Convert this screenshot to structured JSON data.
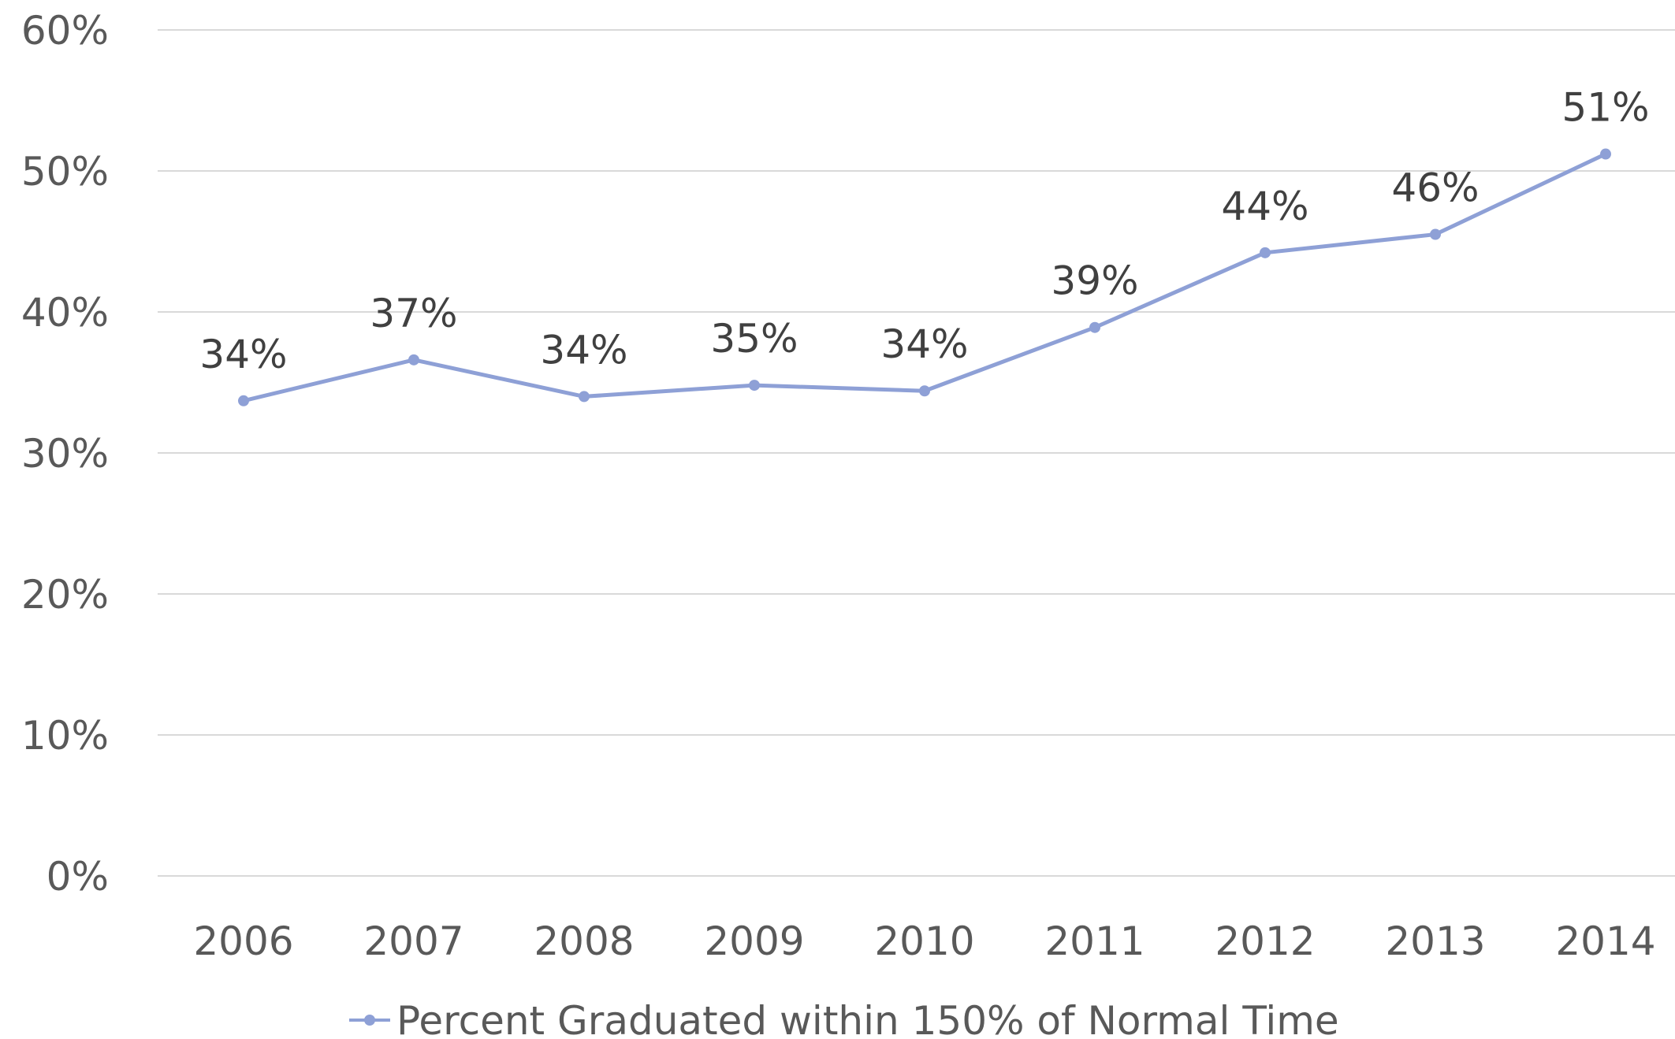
{
  "chart_data": {
    "type": "line",
    "categories": [
      "2006",
      "2007",
      "2008",
      "2009",
      "2010",
      "2011",
      "2012",
      "2013",
      "2014"
    ],
    "series": [
      {
        "name": "Percent Graduated within 150% of Normal Time",
        "values": [
          33.7,
          36.6,
          34.0,
          34.8,
          34.4,
          38.9,
          44.2,
          45.5,
          51.2
        ],
        "labels": [
          "34%",
          "37%",
          "34%",
          "35%",
          "34%",
          "39%",
          "44%",
          "46%",
          "51%"
        ],
        "color": "#8ea0d6"
      }
    ],
    "ylim": [
      0,
      60
    ],
    "yticks": [
      0,
      10,
      20,
      30,
      40,
      50,
      60
    ],
    "ytick_labels": [
      "0%",
      "10%",
      "20%",
      "30%",
      "40%",
      "50%",
      "60%"
    ],
    "grid": true,
    "legend_position": "bottom",
    "colors": {
      "grid": "#d9d9d9",
      "tick_text": "#595959",
      "data_label_text": "#404040"
    }
  }
}
